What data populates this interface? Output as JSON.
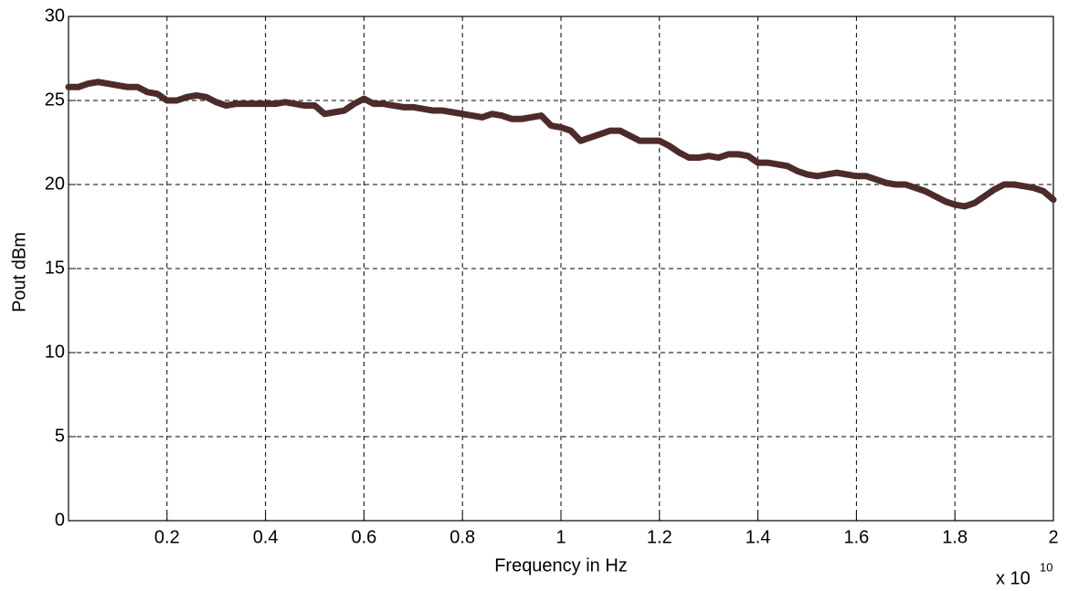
{
  "chart_data": {
    "type": "line",
    "x_label": "Frequency in Hz",
    "y_label": "Pout  dBm",
    "x_scale_label": "x 10",
    "x_scale_exponent": "10",
    "x": [
      0,
      0.02,
      0.04,
      0.06,
      0.08,
      0.1,
      0.12,
      0.14,
      0.16,
      0.18,
      0.2,
      0.22,
      0.24,
      0.26,
      0.28,
      0.3,
      0.32,
      0.34,
      0.36,
      0.38,
      0.4,
      0.42,
      0.44,
      0.46,
      0.48,
      0.5,
      0.52,
      0.54,
      0.56,
      0.58,
      0.6,
      0.62,
      0.64,
      0.66,
      0.68,
      0.7,
      0.72,
      0.74,
      0.76,
      0.78,
      0.8,
      0.82,
      0.84,
      0.86,
      0.88,
      0.9,
      0.92,
      0.94,
      0.96,
      0.98,
      1,
      1.02,
      1.04,
      1.06,
      1.08,
      1.1,
      1.12,
      1.14,
      1.16,
      1.18,
      1.2,
      1.22,
      1.24,
      1.26,
      1.28,
      1.3,
      1.32,
      1.34,
      1.36,
      1.38,
      1.4,
      1.42,
      1.44,
      1.46,
      1.48,
      1.5,
      1.52,
      1.54,
      1.56,
      1.58,
      1.6,
      1.62,
      1.64,
      1.66,
      1.68,
      1.7,
      1.72,
      1.74,
      1.76,
      1.78,
      1.8,
      1.82,
      1.84,
      1.86,
      1.88,
      1.9,
      1.92,
      1.94,
      1.96,
      1.98,
      2
    ],
    "values": [
      25.8,
      25.8,
      26.0,
      26.1,
      26.0,
      25.9,
      25.8,
      25.8,
      25.5,
      25.4,
      25.0,
      25.0,
      25.2,
      25.3,
      25.2,
      24.9,
      24.7,
      24.8,
      24.8,
      24.8,
      24.8,
      24.8,
      24.9,
      24.8,
      24.7,
      24.7,
      24.2,
      24.3,
      24.4,
      24.8,
      25.1,
      24.8,
      24.8,
      24.7,
      24.6,
      24.6,
      24.5,
      24.4,
      24.4,
      24.3,
      24.2,
      24.1,
      24.0,
      24.2,
      24.1,
      23.9,
      23.9,
      24.0,
      24.1,
      23.5,
      23.4,
      23.2,
      22.6,
      22.8,
      23.0,
      23.2,
      23.2,
      22.9,
      22.6,
      22.6,
      22.6,
      22.3,
      21.9,
      21.6,
      21.6,
      21.7,
      21.6,
      21.8,
      21.8,
      21.7,
      21.3,
      21.3,
      21.2,
      21.1,
      20.8,
      20.6,
      20.5,
      20.6,
      20.7,
      20.6,
      20.5,
      20.5,
      20.3,
      20.1,
      20.0,
      20.0,
      19.8,
      19.6,
      19.3,
      19.0,
      18.8,
      18.7,
      18.9,
      19.3,
      19.7,
      20.0,
      20.0,
      19.9,
      19.8,
      19.6,
      19.1
    ],
    "color": "#4e2b2b",
    "xlim": [
      0,
      2
    ],
    "ylim": [
      0,
      30
    ],
    "xticks": [
      0.2,
      0.4,
      0.6,
      0.8,
      1,
      1.2,
      1.4,
      1.6,
      1.8,
      2
    ],
    "yticks": [
      0,
      5,
      10,
      15,
      20,
      25,
      30
    ],
    "grid": true
  }
}
